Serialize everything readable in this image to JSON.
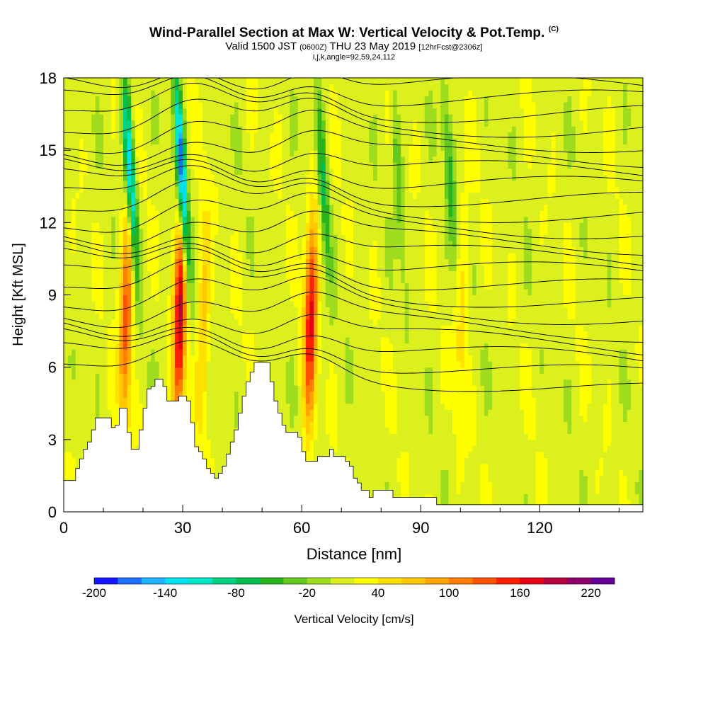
{
  "header": {
    "title": "Wind-Parallel Section at Max W: Vertical Velocity & Pot.Temp.",
    "title_mark": "(C)",
    "subtitle_a": "Valid 1500 JST",
    "subtitle_b": "(0600Z)",
    "subtitle_c": "THU 23 May 2019",
    "subtitle_d": "[12hrFcst@2306z]",
    "section_info": "i,j,k,angle=92,59,24,112"
  },
  "chart_data": {
    "type": "heatmap",
    "xlabel": "Distance [nm]",
    "ylabel": "Height [Kft MSL]",
    "xlim": [
      0,
      146
    ],
    "ylim": [
      0,
      18
    ],
    "x_ticks": [
      0,
      30,
      60,
      90,
      120
    ],
    "y_ticks": [
      0,
      3,
      6,
      9,
      12,
      15,
      18
    ],
    "colorbar": {
      "label": "Vertical Velocity [cm/s]",
      "levels": [
        -200,
        -180,
        -160,
        -140,
        -120,
        -100,
        -80,
        -60,
        -40,
        -20,
        0,
        20,
        40,
        60,
        80,
        100,
        120,
        140,
        160,
        180,
        200,
        220
      ],
      "tick_labels": [
        "-200",
        "-140",
        "-80",
        "-20",
        "40",
        "100",
        "160",
        "220"
      ],
      "colors": [
        "#1414ff",
        "#1e6eff",
        "#1eb4ff",
        "#00e1f0",
        "#00e6c8",
        "#00d282",
        "#00be50",
        "#28b41e",
        "#64c81e",
        "#a0dc1e",
        "#dcf01e",
        "#ffff00",
        "#ffe100",
        "#ffc800",
        "#ffa500",
        "#ff7d00",
        "#ff5000",
        "#ff1e00",
        "#e60014",
        "#b4003c",
        "#8c006e",
        "#640096"
      ]
    },
    "updrafts": [
      {
        "x": 15.5,
        "w": 120
      },
      {
        "x": 29,
        "w": 170
      },
      {
        "x": 62,
        "w": 150
      },
      {
        "x": 35,
        "w": 60
      },
      {
        "x": 100,
        "w": 40
      }
    ],
    "downdrafts": [
      {
        "x": 17.5,
        "w": -160
      },
      {
        "x": 30.5,
        "w": -200
      },
      {
        "x": 66,
        "w": -80
      },
      {
        "x": 98,
        "w": -60
      },
      {
        "x": 85,
        "w": -50
      }
    ],
    "terrain": [
      [
        0,
        1.3
      ],
      [
        2,
        1.3
      ],
      [
        3,
        1.8
      ],
      [
        4,
        2.2
      ],
      [
        5,
        2.6
      ],
      [
        6,
        2.9
      ],
      [
        7,
        3.4
      ],
      [
        8,
        3.9
      ],
      [
        11,
        3.9
      ],
      [
        12,
        3.5
      ],
      [
        13,
        3.6
      ],
      [
        14,
        4.3
      ],
      [
        15,
        4.3
      ],
      [
        16,
        3.3
      ],
      [
        17,
        2.6
      ],
      [
        18,
        2.6
      ],
      [
        19,
        3.4
      ],
      [
        20,
        4.3
      ],
      [
        21,
        5.1
      ],
      [
        22,
        5.2
      ],
      [
        23,
        5.5
      ],
      [
        24,
        5.5
      ],
      [
        25,
        5.2
      ],
      [
        26,
        4.6
      ],
      [
        28,
        4.6
      ],
      [
        29,
        4.8
      ],
      [
        31,
        4.6
      ],
      [
        32,
        3.7
      ],
      [
        33,
        2.7
      ],
      [
        34,
        2.5
      ],
      [
        35,
        2.2
      ],
      [
        36,
        1.8
      ],
      [
        37,
        1.6
      ],
      [
        38,
        1.4
      ],
      [
        39,
        1.6
      ],
      [
        40,
        1.9
      ],
      [
        41,
        2.4
      ],
      [
        42,
        2.9
      ],
      [
        43,
        3.4
      ],
      [
        44,
        4.1
      ],
      [
        45,
        4.8
      ],
      [
        46,
        5.4
      ],
      [
        47,
        5.8
      ],
      [
        48,
        6.2
      ],
      [
        51,
        6.2
      ],
      [
        52,
        5.4
      ],
      [
        53,
        4.6
      ],
      [
        54,
        4.1
      ],
      [
        55,
        3.6
      ],
      [
        56,
        3.3
      ],
      [
        58,
        3.3
      ],
      [
        59,
        3.1
      ],
      [
        60,
        2.5
      ],
      [
        61,
        2.1
      ],
      [
        63,
        2.1
      ],
      [
        64,
        2.3
      ],
      [
        66,
        2.3
      ],
      [
        67,
        2.6
      ],
      [
        68,
        2.3
      ],
      [
        70,
        2.3
      ],
      [
        71,
        2.1
      ],
      [
        72,
        1.9
      ],
      [
        73,
        1.4
      ],
      [
        74,
        1.2
      ],
      [
        75,
        0.9
      ],
      [
        76,
        0.9
      ],
      [
        77,
        0.6
      ],
      [
        78,
        0.9
      ],
      [
        82,
        0.9
      ],
      [
        83,
        0.6
      ],
      [
        88,
        0.6
      ],
      [
        90,
        0.6
      ],
      [
        93,
        0.6
      ],
      [
        94,
        0.3
      ],
      [
        146,
        0.3
      ]
    ],
    "isentropes": [
      [
        0,
        6.0
      ],
      [
        4,
        6.1
      ],
      [
        7,
        5.9
      ],
      [
        9,
        5.4
      ],
      [
        11,
        4.6
      ]
    ]
  }
}
